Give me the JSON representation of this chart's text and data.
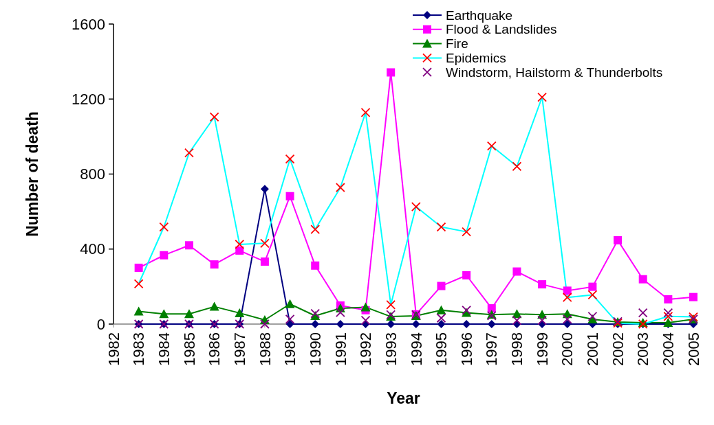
{
  "chart_data": {
    "type": "line",
    "xlabel": "Year",
    "ylabel": "Number of death",
    "x": [
      1983,
      1984,
      1985,
      1986,
      1987,
      1988,
      1989,
      1990,
      1991,
      1992,
      1993,
      1994,
      1995,
      1996,
      1997,
      1998,
      1999,
      2000,
      2001,
      2002,
      2003,
      2004,
      2005
    ],
    "xlim": [
      1982,
      2005
    ],
    "xticks": [
      1982,
      1983,
      1984,
      1985,
      1986,
      1987,
      1988,
      1989,
      1990,
      1991,
      1992,
      1993,
      1994,
      1995,
      1996,
      1997,
      1998,
      1999,
      2000,
      2001,
      2002,
      2003,
      2004,
      2005
    ],
    "ylim": [
      0,
      1600
    ],
    "yticks": [
      0,
      400,
      800,
      1200,
      1600
    ],
    "grid": false,
    "legend": "top right",
    "series": [
      {
        "name": "Earthquake",
        "color": "#000080",
        "marker": "diamond",
        "values": [
          0,
          0,
          0,
          0,
          0,
          720,
          0,
          0,
          0,
          0,
          0,
          0,
          0,
          0,
          0,
          0,
          0,
          0,
          0,
          0,
          0,
          0,
          0
        ]
      },
      {
        "name": "Flood & Landslides",
        "color": "#ff00ff",
        "marker": "square",
        "values": [
          300,
          367,
          420,
          318,
          392,
          333,
          682,
          312,
          99,
          74,
          1342,
          52,
          203,
          260,
          84,
          280,
          212,
          178,
          199,
          447,
          239,
          132,
          144
        ]
      },
      {
        "name": "Fire",
        "color": "#008000",
        "marker": "triangle",
        "values": [
          68,
          54,
          54,
          93,
          59,
          22,
          107,
          44,
          84,
          90,
          40,
          44,
          74,
          60,
          50,
          54,
          50,
          54,
          26,
          11,
          7,
          7,
          26
        ]
      },
      {
        "name": "Epidemics",
        "color": "#00ffff",
        "marker": "cross",
        "colors": [
          "#ff0000",
          "#ff0000",
          "#ff0000",
          "#ff0000",
          "#ff0000",
          "#ff0000",
          "#ff0000",
          "#ff0000",
          "#ff0000",
          "#ff0000",
          "#ff0000",
          "#ff0000",
          "#ff0000",
          "#ff0000",
          "#ff0000",
          "#ff0000",
          "#ff0000",
          "#ff0000",
          "#ff0000",
          "#ff0000",
          "#ff0000",
          "#ff0000",
          "#ff0000"
        ],
        "values": [
          215,
          518,
          913,
          1104,
          425,
          431,
          880,
          505,
          728,
          1128,
          103,
          626,
          518,
          492,
          950,
          841,
          1210,
          142,
          156,
          5,
          0,
          41,
          38
        ]
      },
      {
        "name": "Windstorm, Hailstorm & Thunderbolts",
        "type": "scatter",
        "color": "#800080",
        "marker": "cross",
        "values": [
          0,
          0,
          0,
          0,
          0,
          0,
          26,
          56,
          62,
          20,
          50,
          50,
          32,
          74,
          44,
          20,
          20,
          26,
          41,
          13,
          60,
          60,
          26
        ]
      }
    ]
  }
}
